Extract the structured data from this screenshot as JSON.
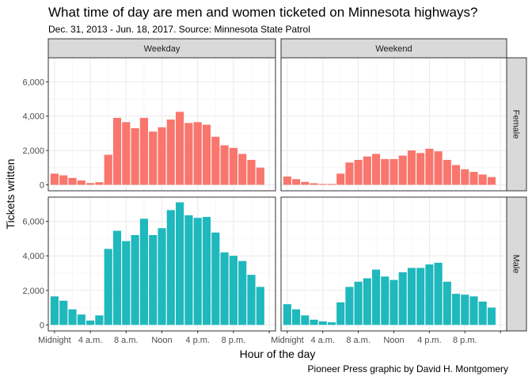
{
  "title": "What time of day are men and women ticketed on Minnesota highways?",
  "subtitle": "Dec. 31, 2013 - Jun. 18, 2017. Source: Minnesota State Patrol",
  "caption": "Pioneer Press graphic by David H. Montgomery",
  "colors": {
    "female": "#F8766D",
    "male": "#1FB8BC",
    "strip": "#D9D9D9",
    "grid": "#EBEBEB"
  },
  "chart_data": {
    "type": "bar",
    "facet_columns": [
      "Weekday",
      "Weekend"
    ],
    "facet_rows": [
      "Female",
      "Male"
    ],
    "xlabel": "Hour of the day",
    "ylabel": "Tickets written",
    "x": [
      0,
      1,
      2,
      3,
      4,
      5,
      6,
      7,
      8,
      9,
      10,
      11,
      12,
      13,
      14,
      15,
      16,
      17,
      18,
      19,
      20,
      21,
      22,
      23
    ],
    "x_ticks": [
      {
        "value": 0,
        "label": "Midnight"
      },
      {
        "value": 4,
        "label": "4 a.m."
      },
      {
        "value": 8,
        "label": "8 a.m."
      },
      {
        "value": 12,
        "label": "Noon"
      },
      {
        "value": 16,
        "label": "4 p.m."
      },
      {
        "value": 20,
        "label": "8 p.m."
      },
      {
        "value": 24,
        "label": ""
      }
    ],
    "y_ticks": [
      {
        "value": 0,
        "label": "0"
      },
      {
        "value": 2000,
        "label": "2,000"
      },
      {
        "value": 4000,
        "label": "4,000"
      },
      {
        "value": 6000,
        "label": "6,000"
      }
    ],
    "ylim": [
      -350,
      7400
    ],
    "grid": true,
    "panels": [
      {
        "col": "Weekday",
        "row": "Female",
        "series": "Female",
        "values": [
          650,
          550,
          400,
          250,
          100,
          150,
          1750,
          3900,
          3650,
          3300,
          3900,
          3100,
          3350,
          3800,
          4250,
          3600,
          3650,
          3500,
          2800,
          2300,
          2150,
          1800,
          1450,
          1000
        ]
      },
      {
        "col": "Weekend",
        "row": "Female",
        "series": "Female",
        "values": [
          480,
          330,
          170,
          90,
          50,
          50,
          650,
          1300,
          1450,
          1650,
          1800,
          1500,
          1500,
          1700,
          2000,
          1850,
          2100,
          1950,
          1450,
          1150,
          900,
          750,
          600,
          450
        ]
      },
      {
        "col": "Weekday",
        "row": "Male",
        "series": "Male",
        "values": [
          1650,
          1400,
          900,
          600,
          250,
          550,
          4400,
          5450,
          4850,
          5200,
          6150,
          5200,
          5600,
          6650,
          7100,
          6350,
          6200,
          6250,
          5350,
          4200,
          4000,
          3700,
          2900,
          2200
        ]
      },
      {
        "col": "Weekend",
        "row": "Male",
        "series": "Male",
        "values": [
          1200,
          900,
          550,
          300,
          200,
          150,
          1300,
          2200,
          2500,
          2700,
          3200,
          2800,
          2600,
          3050,
          3300,
          3300,
          3500,
          3600,
          2500,
          1800,
          1750,
          1650,
          1350,
          1000
        ]
      }
    ]
  }
}
